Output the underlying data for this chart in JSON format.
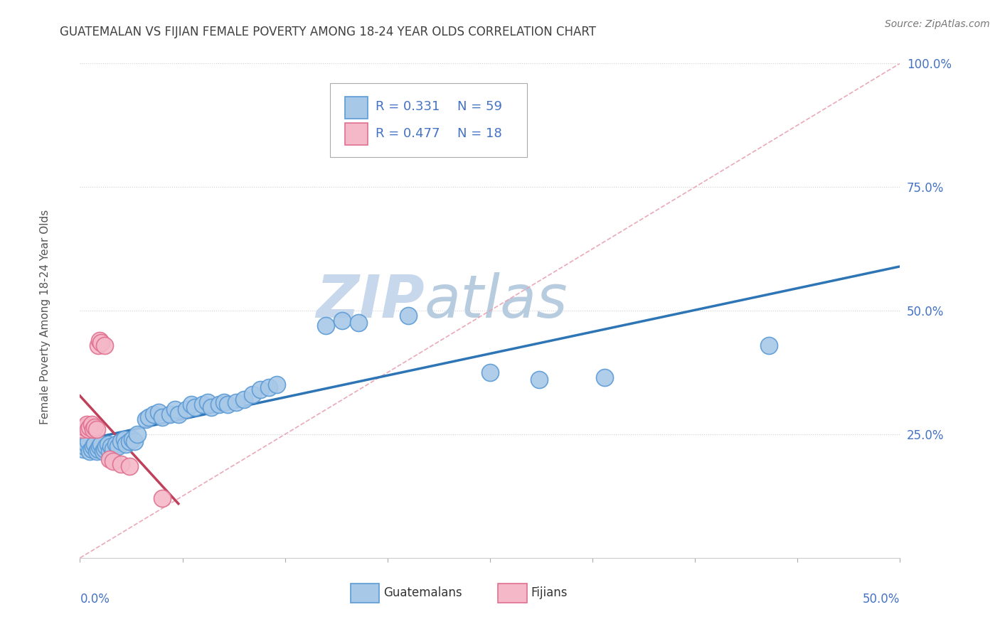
{
  "title": "GUATEMALAN VS FIJIAN FEMALE POVERTY AMONG 18-24 YEAR OLDS CORRELATION CHART",
  "source": "Source: ZipAtlas.com",
  "ylabel": "Female Poverty Among 18-24 Year Olds",
  "xlim": [
    0,
    0.5
  ],
  "ylim": [
    0.0,
    1.0
  ],
  "guatemalan_color": "#a8c8e8",
  "fijian_color": "#f4b8c8",
  "guatemalan_edge_color": "#5b9bd5",
  "fijian_edge_color": "#e07090",
  "guatemalan_trend_color": "#2e75b6",
  "fijian_trend_color": "#c0405a",
  "diag_line_color": "#e8a0b0",
  "watermark": "ZIPatlas",
  "watermark_color": "#c8d8ec",
  "legend_R_guat": "0.331",
  "legend_N_guat": "59",
  "legend_R_fiji": "0.477",
  "legend_N_fiji": "18",
  "background_color": "#ffffff",
  "grid_color": "#d0d0d0",
  "title_color": "#404040",
  "axis_label_color": "#4472c4",
  "legend_text_color": "#4472c4",
  "guatemalan_x": [
    0.002,
    0.003,
    0.004,
    0.005,
    0.006,
    0.007,
    0.008,
    0.009,
    0.01,
    0.011,
    0.012,
    0.013,
    0.014,
    0.015,
    0.016,
    0.017,
    0.018,
    0.019,
    0.02,
    0.022,
    0.023,
    0.025,
    0.027,
    0.028,
    0.03,
    0.032,
    0.033,
    0.035,
    0.04,
    0.042,
    0.045,
    0.048,
    0.05,
    0.055,
    0.058,
    0.06,
    0.065,
    0.068,
    0.07,
    0.075,
    0.078,
    0.08,
    0.085,
    0.088,
    0.09,
    0.095,
    0.1,
    0.105,
    0.11,
    0.115,
    0.12,
    0.15,
    0.16,
    0.17,
    0.2,
    0.25,
    0.28,
    0.32,
    0.42
  ],
  "guatemalan_y": [
    0.22,
    0.225,
    0.23,
    0.235,
    0.215,
    0.22,
    0.225,
    0.23,
    0.215,
    0.22,
    0.225,
    0.23,
    0.215,
    0.22,
    0.225,
    0.23,
    0.215,
    0.225,
    0.22,
    0.23,
    0.225,
    0.235,
    0.24,
    0.23,
    0.235,
    0.24,
    0.235,
    0.25,
    0.28,
    0.285,
    0.29,
    0.295,
    0.285,
    0.29,
    0.3,
    0.29,
    0.3,
    0.31,
    0.305,
    0.31,
    0.315,
    0.305,
    0.31,
    0.315,
    0.31,
    0.315,
    0.32,
    0.33,
    0.34,
    0.345,
    0.35,
    0.47,
    0.48,
    0.475,
    0.49,
    0.375,
    0.36,
    0.365,
    0.43
  ],
  "fijian_x": [
    0.001,
    0.003,
    0.004,
    0.005,
    0.006,
    0.007,
    0.008,
    0.009,
    0.01,
    0.011,
    0.012,
    0.013,
    0.015,
    0.018,
    0.02,
    0.025,
    0.03,
    0.05
  ],
  "fijian_y": [
    0.26,
    0.265,
    0.27,
    0.26,
    0.265,
    0.27,
    0.26,
    0.265,
    0.26,
    0.43,
    0.44,
    0.435,
    0.43,
    0.2,
    0.195,
    0.19,
    0.185,
    0.12
  ]
}
